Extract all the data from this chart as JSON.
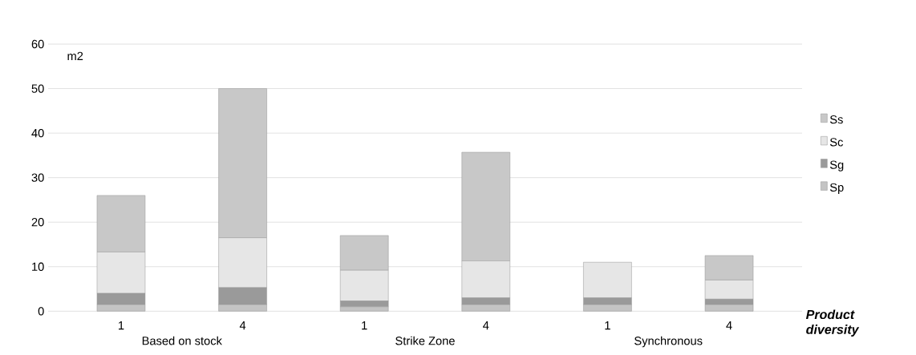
{
  "chart_data": {
    "type": "bar",
    "stacked": true,
    "xlabel": "**Product diversity**",
    "ylabel": "m2",
    "categories": [
      "1",
      "4",
      "1",
      "4",
      "1",
      "4"
    ],
    "series": [
      {
        "name": "Sp",
        "color": "#c4c4c4",
        "values": [
          1.5,
          1.5,
          1.0,
          1.5,
          1.5,
          1.5
        ]
      },
      {
        "name": "Sg",
        "color": "#9a9a9a",
        "values": [
          2.5,
          3.8,
          1.3,
          1.5,
          1.5,
          1.2
        ]
      },
      {
        "name": "Sc",
        "color": "#e6e6e6",
        "values": [
          9.3,
          11.2,
          6.9,
          8.3,
          8.0,
          4.3
        ]
      },
      {
        "name": "Ss",
        "color": "#c8c8c8",
        "values": [
          12.7,
          33.5,
          7.8,
          24.4,
          0,
          5.5
        ]
      }
    ],
    "ylim": [
      0,
      60
    ],
    "yticks": [
      0,
      10,
      20,
      30,
      40,
      50,
      60
    ],
    "grid": "y",
    "legend": "right",
    "annotations": [
      "Based on stock",
      "Strike Zone",
      "Synchronous"
    ]
  }
}
